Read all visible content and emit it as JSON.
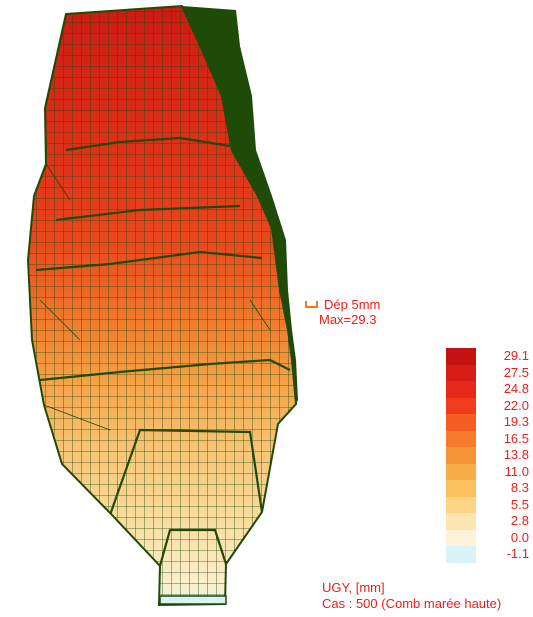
{
  "displacement_annotation": {
    "scale_label": "Dép  5mm",
    "max_label": "Max=29.3"
  },
  "legend": {
    "entries": [
      {
        "value": "29.1",
        "color": "#c41212"
      },
      {
        "value": "27.5",
        "color": "#d61d16"
      },
      {
        "value": "24.8",
        "color": "#e6281a"
      },
      {
        "value": "22.0",
        "color": "#f03c1c"
      },
      {
        "value": "19.3",
        "color": "#f45e22"
      },
      {
        "value": "16.5",
        "color": "#f57a2a"
      },
      {
        "value": "13.8",
        "color": "#f69538"
      },
      {
        "value": "11.0",
        "color": "#f8ad48"
      },
      {
        "value": "8.3",
        "color": "#fac25e"
      },
      {
        "value": "5.5",
        "color": "#fbd585"
      },
      {
        "value": "2.8",
        "color": "#fce5b0"
      },
      {
        "value": "0.0",
        "color": "#fdf3da"
      },
      {
        "value": "-1.1",
        "color": "#d8f4f8"
      }
    ]
  },
  "caption": {
    "quantity": "UGY, [mm]",
    "load_case": "Cas : 500 (Comb marée haute)"
  },
  "mesh_color": "#1f4a08"
}
